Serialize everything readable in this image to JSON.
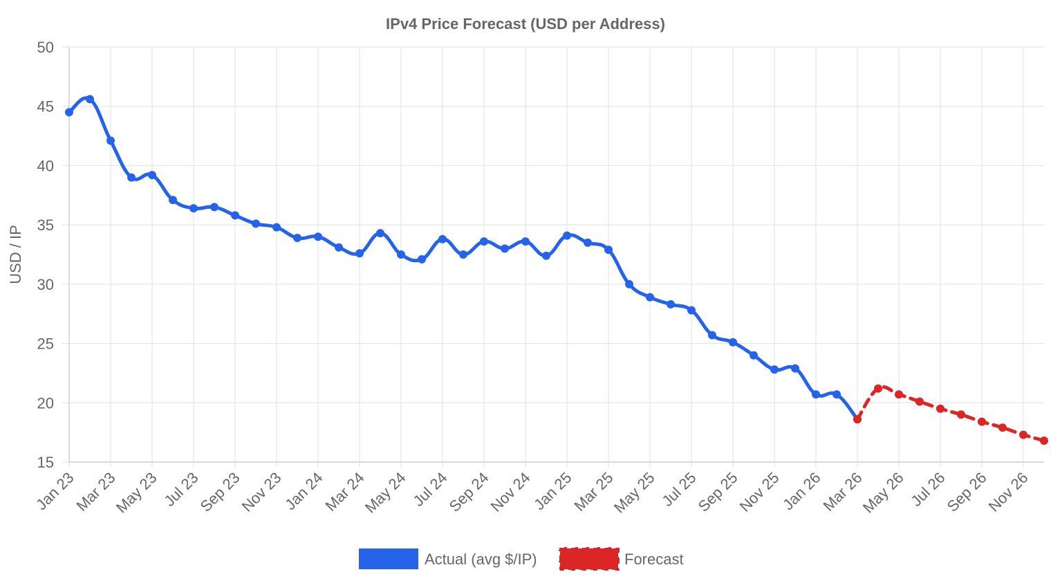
{
  "chart_data": {
    "type": "line",
    "title": "IPv4 Price Forecast (USD per Address)",
    "ylabel": "USD / IP",
    "xlabel": "",
    "ylim": [
      15,
      50
    ],
    "yticks": [
      "15",
      "20",
      "25",
      "30",
      "35",
      "40",
      "45",
      "50"
    ],
    "xtick_labels": [
      "Jan 23",
      "Mar 23",
      "May 23",
      "Jul 23",
      "Sep 23",
      "Nov 23",
      "Jan 24",
      "Mar 24",
      "May 24",
      "Jul 24",
      "Sep 24",
      "Nov 24",
      "Jan 25",
      "Mar 25",
      "May 25",
      "Jul 25",
      "Sep 25",
      "Nov 25",
      "Jan 26",
      "Mar 26",
      "May 26",
      "Jul 26",
      "Sep 26",
      "Nov 26"
    ],
    "x": [
      "Jan 23",
      "Feb 23",
      "Mar 23",
      "Apr 23",
      "May 23",
      "Jun 23",
      "Jul 23",
      "Aug 23",
      "Sep 23",
      "Oct 23",
      "Nov 23",
      "Dec 23",
      "Jan 24",
      "Feb 24",
      "Mar 24",
      "Apr 24",
      "May 24",
      "Jun 24",
      "Jul 24",
      "Aug 24",
      "Sep 24",
      "Oct 24",
      "Nov 24",
      "Dec 24",
      "Jan 25",
      "Feb 25",
      "Mar 25",
      "Apr 25",
      "May 25",
      "Jun 25",
      "Jul 25",
      "Aug 25",
      "Sep 25",
      "Oct 25",
      "Nov 25",
      "Dec 25",
      "Jan 26",
      "Feb 26",
      "Mar 26",
      "Apr 26",
      "May 26",
      "Jun 26",
      "Jul 26",
      "Aug 26",
      "Sep 26",
      "Oct 26",
      "Nov 26",
      "Dec 26"
    ],
    "grid": true,
    "legend_position": "bottom",
    "series": [
      {
        "name": "Actual (avg $/IP)",
        "color": "#2563eb",
        "style": "solid",
        "values": [
          44.5,
          45.6,
          42.1,
          39.0,
          39.2,
          37.1,
          36.4,
          36.5,
          35.8,
          35.1,
          34.8,
          33.9,
          34.0,
          33.1,
          32.6,
          34.3,
          32.5,
          32.1,
          33.8,
          32.5,
          33.6,
          33.0,
          33.6,
          32.4,
          34.1,
          33.5,
          32.9,
          30.0,
          28.9,
          28.3,
          27.8,
          25.7,
          25.1,
          24.0,
          22.8,
          22.9,
          20.7,
          20.7,
          18.6,
          null,
          null,
          null,
          null,
          null,
          null,
          null,
          null,
          null
        ]
      },
      {
        "name": "Forecast",
        "color": "#dc2626",
        "style": "dashed",
        "values": [
          null,
          null,
          null,
          null,
          null,
          null,
          null,
          null,
          null,
          null,
          null,
          null,
          null,
          null,
          null,
          null,
          null,
          null,
          null,
          null,
          null,
          null,
          null,
          null,
          null,
          null,
          null,
          null,
          null,
          null,
          null,
          null,
          null,
          null,
          null,
          null,
          null,
          null,
          18.6,
          21.2,
          20.7,
          20.1,
          19.5,
          19.0,
          18.4,
          17.9,
          17.3,
          16.8
        ]
      }
    ]
  }
}
